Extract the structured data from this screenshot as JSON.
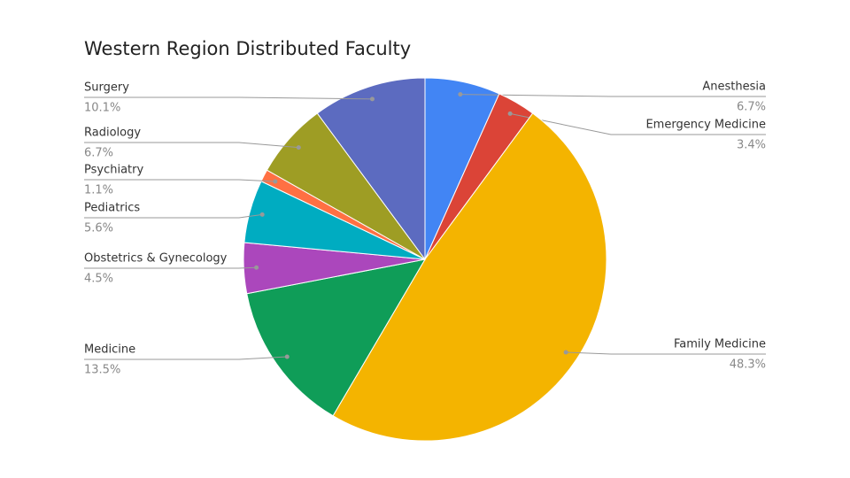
{
  "chart_data": {
    "type": "pie",
    "title": "Western Region Distributed Faculty",
    "categories": [
      "Anesthesia",
      "Emergency Medicine",
      "Family Medicine",
      "Medicine",
      "Obstetrics & Gynecology",
      "Pediatrics",
      "Psychiatry",
      "Radiology",
      "Surgery"
    ],
    "values": [
      6.7,
      3.4,
      48.3,
      13.5,
      4.5,
      5.6,
      1.1,
      6.7,
      10.1
    ],
    "value_labels": [
      "6.7%",
      "3.4%",
      "48.3%",
      "13.5%",
      "4.5%",
      "5.6%",
      "1.1%",
      "6.7%",
      "10.1%"
    ],
    "colors": [
      "#4285f4",
      "#db4437",
      "#f4b400",
      "#0f9d58",
      "#ab47bc",
      "#00acc1",
      "#ff7043",
      "#9e9d24",
      "#5c6bc0"
    ]
  }
}
